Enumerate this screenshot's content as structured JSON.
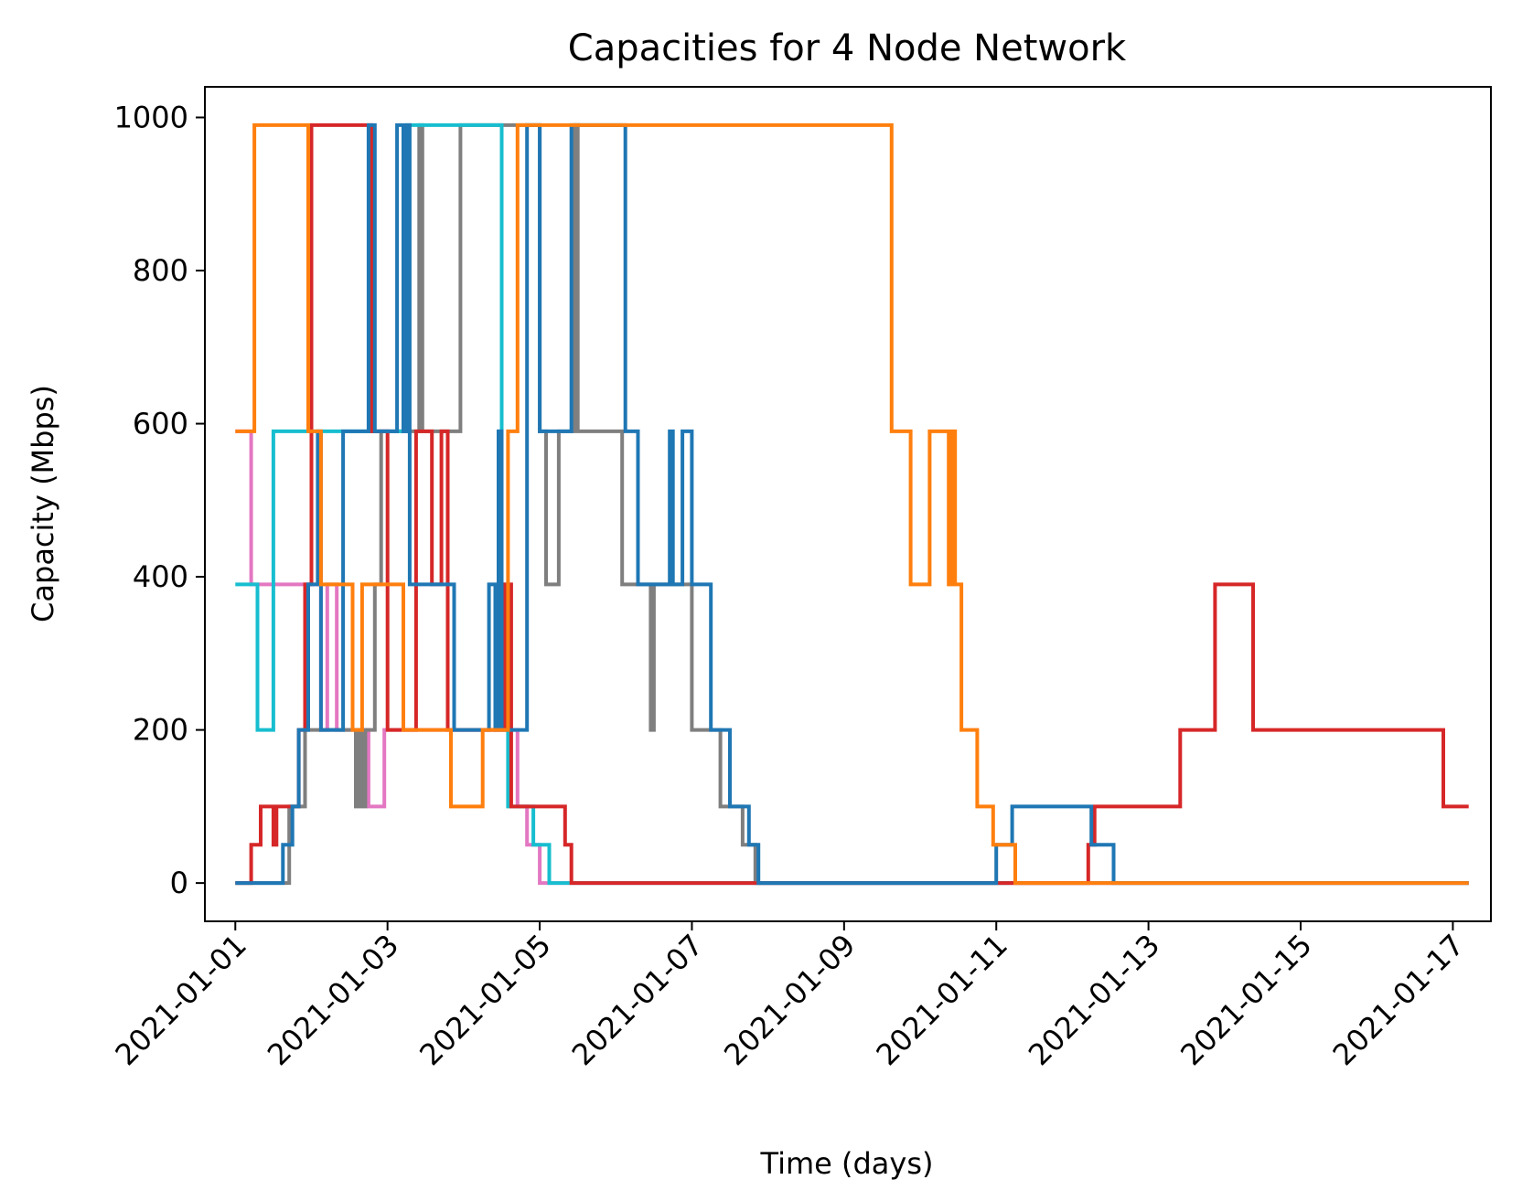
{
  "chart_data": {
    "type": "line",
    "step": true,
    "title": "Capacities for 4 Node Network",
    "xlabel": "Time (days)",
    "ylabel": "Capacity (Mbps)",
    "x_is_date": true,
    "xlim": [
      "2020-12-31T14:24",
      "2021-01-17T12:00"
    ],
    "ylim": [
      -50,
      1040
    ],
    "x_ticks": [
      "2021-01-01",
      "2021-01-03",
      "2021-01-05",
      "2021-01-07",
      "2021-01-09",
      "2021-01-11",
      "2021-01-13",
      "2021-01-15",
      "2021-01-17"
    ],
    "y_ticks": [
      0,
      200,
      400,
      600,
      800,
      1000
    ],
    "grid": false,
    "legend": false,
    "series": [
      {
        "color": "#e377c2",
        "points": [
          [
            "2021-01-01T00:00",
            590
          ],
          [
            "2021-01-01T05:00",
            590
          ],
          [
            "2021-01-01T05:00",
            390
          ],
          [
            "2021-01-01T12:00",
            390
          ],
          [
            "2021-01-01T12:00",
            390
          ],
          [
            "2021-01-02T03:00",
            390
          ],
          [
            "2021-01-02T03:00",
            200
          ],
          [
            "2021-01-02T05:00",
            200
          ],
          [
            "2021-01-02T05:00",
            390
          ],
          [
            "2021-01-02T08:00",
            390
          ],
          [
            "2021-01-02T08:00",
            200
          ],
          [
            "2021-01-02T18:00",
            200
          ],
          [
            "2021-01-02T18:00",
            100
          ],
          [
            "2021-01-02T23:00",
            100
          ],
          [
            "2021-01-02T23:00",
            200
          ],
          [
            "2021-01-04T17:00",
            200
          ],
          [
            "2021-01-04T17:00",
            100
          ],
          [
            "2021-01-04T20:00",
            100
          ],
          [
            "2021-01-04T20:00",
            50
          ],
          [
            "2021-01-05T00:00",
            50
          ],
          [
            "2021-01-05T00:00",
            0
          ],
          [
            "2021-01-17T05:00",
            0
          ]
        ]
      },
      {
        "color": "#7f7f7f",
        "points": [
          [
            "2021-01-01T00:00",
            0
          ],
          [
            "2021-01-01T17:00",
            0
          ],
          [
            "2021-01-01T17:00",
            100
          ],
          [
            "2021-01-01T22:00",
            100
          ],
          [
            "2021-01-01T22:00",
            200
          ],
          [
            "2021-01-02T14:00",
            200
          ],
          [
            "2021-01-02T14:00",
            100
          ],
          [
            "2021-01-02T15:00",
            100
          ],
          [
            "2021-01-02T15:00",
            200
          ],
          [
            "2021-01-02T16:00",
            200
          ],
          [
            "2021-01-02T16:00",
            100
          ],
          [
            "2021-01-02T17:00",
            100
          ],
          [
            "2021-01-02T17:00",
            200
          ],
          [
            "2021-01-02T20:00",
            200
          ],
          [
            "2021-01-02T20:00",
            390
          ],
          [
            "2021-01-02T22:00",
            390
          ],
          [
            "2021-01-02T22:00",
            590
          ],
          [
            "2021-01-03T10:00",
            590
          ],
          [
            "2021-01-03T10:00",
            990
          ],
          [
            "2021-01-03T11:00",
            990
          ],
          [
            "2021-01-03T11:00",
            590
          ],
          [
            "2021-01-03T23:00",
            590
          ],
          [
            "2021-01-03T23:00",
            990
          ],
          [
            "2021-01-05T00:00",
            990
          ],
          [
            "2021-01-05T00:00",
            590
          ],
          [
            "2021-01-05T02:00",
            590
          ],
          [
            "2021-01-05T02:00",
            390
          ],
          [
            "2021-01-05T06:00",
            390
          ],
          [
            "2021-01-05T06:00",
            590
          ],
          [
            "2021-01-05T11:00",
            590
          ],
          [
            "2021-01-05T11:00",
            990
          ],
          [
            "2021-01-05T12:00",
            990
          ],
          [
            "2021-01-05T12:00",
            590
          ],
          [
            "2021-01-06T02:00",
            590
          ],
          [
            "2021-01-06T02:00",
            390
          ],
          [
            "2021-01-06T11:00",
            390
          ],
          [
            "2021-01-06T11:00",
            200
          ],
          [
            "2021-01-06T12:00",
            200
          ],
          [
            "2021-01-06T12:00",
            390
          ],
          [
            "2021-01-07T00:00",
            390
          ],
          [
            "2021-01-07T00:00",
            200
          ],
          [
            "2021-01-07T09:00",
            200
          ],
          [
            "2021-01-07T09:00",
            100
          ],
          [
            "2021-01-07T16:00",
            100
          ],
          [
            "2021-01-07T16:00",
            50
          ],
          [
            "2021-01-07T20:00",
            50
          ],
          [
            "2021-01-07T20:00",
            0
          ],
          [
            "2021-01-17T05:00",
            0
          ]
        ]
      },
      {
        "color": "#17becf",
        "points": [
          [
            "2021-01-01T00:00",
            390
          ],
          [
            "2021-01-01T07:00",
            390
          ],
          [
            "2021-01-01T07:00",
            200
          ],
          [
            "2021-01-01T12:00",
            200
          ],
          [
            "2021-01-01T12:00",
            590
          ],
          [
            "2021-01-03T00:00",
            590
          ],
          [
            "2021-01-03T00:00",
            590
          ],
          [
            "2021-01-03T06:00",
            590
          ],
          [
            "2021-01-03T06:00",
            990
          ],
          [
            "2021-01-04T10:00",
            990
          ],
          [
            "2021-01-04T10:00",
            990
          ],
          [
            "2021-01-04T12:00",
            990
          ],
          [
            "2021-01-04T12:00",
            390
          ],
          [
            "2021-01-04T14:00",
            390
          ],
          [
            "2021-01-04T14:00",
            100
          ],
          [
            "2021-01-04T22:00",
            100
          ],
          [
            "2021-01-04T22:00",
            50
          ],
          [
            "2021-01-05T03:00",
            50
          ],
          [
            "2021-01-05T03:00",
            0
          ],
          [
            "2021-01-07T20:00",
            0
          ],
          [
            "2021-01-11T04:00",
            0
          ]
        ]
      },
      {
        "color": "#d62728",
        "points": [
          [
            "2021-01-01T00:00",
            0
          ],
          [
            "2021-01-01T05:00",
            0
          ],
          [
            "2021-01-01T05:00",
            50
          ],
          [
            "2021-01-01T08:00",
            50
          ],
          [
            "2021-01-01T08:00",
            100
          ],
          [
            "2021-01-01T12:00",
            100
          ],
          [
            "2021-01-01T12:00",
            50
          ],
          [
            "2021-01-01T13:00",
            50
          ],
          [
            "2021-01-01T13:00",
            100
          ],
          [
            "2021-01-01T20:00",
            100
          ],
          [
            "2021-01-01T20:00",
            200
          ],
          [
            "2021-01-01T22:00",
            200
          ],
          [
            "2021-01-01T22:00",
            390
          ],
          [
            "2021-01-02T00:00",
            390
          ],
          [
            "2021-01-02T00:00",
            990
          ],
          [
            "2021-01-02T19:00",
            990
          ],
          [
            "2021-01-02T19:00",
            590
          ],
          [
            "2021-01-03T00:00",
            590
          ],
          [
            "2021-01-03T00:00",
            200
          ],
          [
            "2021-01-03T09:00",
            200
          ],
          [
            "2021-01-03T09:00",
            590
          ],
          [
            "2021-01-03T14:00",
            590
          ],
          [
            "2021-01-03T14:00",
            390
          ],
          [
            "2021-01-03T17:00",
            390
          ],
          [
            "2021-01-03T17:00",
            590
          ],
          [
            "2021-01-03T19:00",
            590
          ],
          [
            "2021-01-03T19:00",
            200
          ],
          [
            "2021-01-04T13:00",
            200
          ],
          [
            "2021-01-04T13:00",
            390
          ],
          [
            "2021-01-04T15:00",
            390
          ],
          [
            "2021-01-04T15:00",
            100
          ],
          [
            "2021-01-05T08:00",
            100
          ],
          [
            "2021-01-05T08:00",
            50
          ],
          [
            "2021-01-05T10:00",
            50
          ],
          [
            "2021-01-05T10:00",
            0
          ],
          [
            "2021-01-12T00:00",
            0
          ],
          [
            "2021-01-12T00:00",
            0
          ],
          [
            "2021-01-12T05:00",
            0
          ],
          [
            "2021-01-12T05:00",
            50
          ],
          [
            "2021-01-12T07:00",
            50
          ],
          [
            "2021-01-12T07:00",
            100
          ],
          [
            "2021-01-13T10:00",
            100
          ],
          [
            "2021-01-13T10:00",
            200
          ],
          [
            "2021-01-13T21:00",
            200
          ],
          [
            "2021-01-13T21:00",
            390
          ],
          [
            "2021-01-14T09:00",
            390
          ],
          [
            "2021-01-14T09:00",
            200
          ],
          [
            "2021-01-16T21:00",
            200
          ],
          [
            "2021-01-16T21:00",
            100
          ],
          [
            "2021-01-17T05:00",
            100
          ]
        ]
      },
      {
        "color": "#1f77b4",
        "points": [
          [
            "2021-01-01T00:00",
            0
          ],
          [
            "2021-01-01T15:00",
            0
          ],
          [
            "2021-01-01T15:00",
            50
          ],
          [
            "2021-01-01T18:00",
            50
          ],
          [
            "2021-01-01T18:00",
            100
          ],
          [
            "2021-01-01T20:00",
            100
          ],
          [
            "2021-01-01T20:00",
            200
          ],
          [
            "2021-01-01T23:00",
            200
          ],
          [
            "2021-01-01T23:00",
            390
          ],
          [
            "2021-01-02T02:00",
            390
          ],
          [
            "2021-01-02T02:00",
            590
          ],
          [
            "2021-01-02T03:00",
            590
          ],
          [
            "2021-01-02T03:00",
            200
          ],
          [
            "2021-01-02T10:00",
            200
          ],
          [
            "2021-01-02T10:00",
            590
          ],
          [
            "2021-01-02T18:00",
            590
          ],
          [
            "2021-01-02T18:00",
            990
          ],
          [
            "2021-01-02T20:00",
            990
          ],
          [
            "2021-01-02T20:00",
            590
          ],
          [
            "2021-01-03T03:00",
            590
          ],
          [
            "2021-01-03T03:00",
            990
          ],
          [
            "2021-01-03T05:00",
            990
          ],
          [
            "2021-01-03T05:00",
            590
          ],
          [
            "2021-01-03T06:00",
            590
          ],
          [
            "2021-01-03T06:00",
            990
          ],
          [
            "2021-01-03T07:00",
            990
          ],
          [
            "2021-01-03T07:00",
            390
          ],
          [
            "2021-01-03T21:00",
            390
          ],
          [
            "2021-01-03T21:00",
            200
          ],
          [
            "2021-01-04T08:00",
            200
          ],
          [
            "2021-01-04T08:00",
            390
          ],
          [
            "2021-01-04T10:00",
            390
          ],
          [
            "2021-01-04T10:00",
            200
          ],
          [
            "2021-01-04T11:00",
            200
          ],
          [
            "2021-01-04T11:00",
            590
          ],
          [
            "2021-01-04T12:00",
            590
          ],
          [
            "2021-01-04T12:00",
            200
          ],
          [
            "2021-01-04T20:00",
            200
          ],
          [
            "2021-01-04T20:00",
            990
          ],
          [
            "2021-01-05T00:00",
            990
          ],
          [
            "2021-01-05T00:00",
            590
          ],
          [
            "2021-01-05T10:00",
            590
          ],
          [
            "2021-01-05T10:00",
            990
          ],
          [
            "2021-01-06T03:00",
            990
          ],
          [
            "2021-01-06T03:00",
            590
          ],
          [
            "2021-01-06T07:00",
            590
          ],
          [
            "2021-01-06T07:00",
            390
          ],
          [
            "2021-01-06T17:00",
            390
          ],
          [
            "2021-01-06T17:00",
            590
          ],
          [
            "2021-01-06T18:00",
            590
          ],
          [
            "2021-01-06T18:00",
            390
          ],
          [
            "2021-01-06T21:00",
            390
          ],
          [
            "2021-01-06T21:00",
            590
          ],
          [
            "2021-01-07T00:00",
            590
          ],
          [
            "2021-01-07T00:00",
            390
          ],
          [
            "2021-01-07T06:00",
            390
          ],
          [
            "2021-01-07T06:00",
            200
          ],
          [
            "2021-01-07T12:00",
            200
          ],
          [
            "2021-01-07T12:00",
            100
          ],
          [
            "2021-01-07T18:00",
            100
          ],
          [
            "2021-01-07T18:00",
            50
          ],
          [
            "2021-01-07T21:00",
            50
          ],
          [
            "2021-01-07T21:00",
            0
          ],
          [
            "2021-01-11T00:00",
            0
          ],
          [
            "2021-01-11T00:00",
            50
          ],
          [
            "2021-01-11T05:00",
            50
          ],
          [
            "2021-01-11T05:00",
            100
          ],
          [
            "2021-01-12T06:00",
            100
          ],
          [
            "2021-01-12T06:00",
            50
          ],
          [
            "2021-01-12T13:00",
            50
          ],
          [
            "2021-01-12T13:00",
            0
          ],
          [
            "2021-01-17T05:00",
            0
          ]
        ]
      },
      {
        "color": "#ff7f0e",
        "points": [
          [
            "2021-01-01T00:00",
            590
          ],
          [
            "2021-01-01T06:00",
            590
          ],
          [
            "2021-01-01T06:00",
            990
          ],
          [
            "2021-01-01T23:00",
            990
          ],
          [
            "2021-01-01T23:00",
            590
          ],
          [
            "2021-01-02T03:00",
            590
          ],
          [
            "2021-01-02T03:00",
            390
          ],
          [
            "2021-01-02T13:00",
            390
          ],
          [
            "2021-01-02T13:00",
            200
          ],
          [
            "2021-01-02T16:00",
            200
          ],
          [
            "2021-01-02T16:00",
            390
          ],
          [
            "2021-01-03T05:00",
            390
          ],
          [
            "2021-01-03T05:00",
            200
          ],
          [
            "2021-01-03T20:00",
            200
          ],
          [
            "2021-01-03T20:00",
            100
          ],
          [
            "2021-01-04T06:00",
            100
          ],
          [
            "2021-01-04T06:00",
            200
          ],
          [
            "2021-01-04T14:00",
            200
          ],
          [
            "2021-01-04T14:00",
            590
          ],
          [
            "2021-01-04T17:00",
            590
          ],
          [
            "2021-01-04T17:00",
            990
          ],
          [
            "2021-01-09T15:00",
            990
          ],
          [
            "2021-01-09T15:00",
            590
          ],
          [
            "2021-01-09T21:00",
            590
          ],
          [
            "2021-01-09T21:00",
            390
          ],
          [
            "2021-01-10T03:00",
            390
          ],
          [
            "2021-01-10T03:00",
            590
          ],
          [
            "2021-01-10T09:00",
            590
          ],
          [
            "2021-01-10T09:00",
            390
          ],
          [
            "2021-01-10T10:00",
            390
          ],
          [
            "2021-01-10T10:00",
            590
          ],
          [
            "2021-01-10T11:00",
            590
          ],
          [
            "2021-01-10T11:00",
            390
          ],
          [
            "2021-01-10T13:00",
            390
          ],
          [
            "2021-01-10T13:00",
            200
          ],
          [
            "2021-01-10T18:00",
            200
          ],
          [
            "2021-01-10T18:00",
            100
          ],
          [
            "2021-01-10T23:00",
            100
          ],
          [
            "2021-01-10T23:00",
            50
          ],
          [
            "2021-01-11T06:00",
            50
          ],
          [
            "2021-01-11T06:00",
            0
          ],
          [
            "2021-01-17T05:00",
            0
          ]
        ]
      }
    ]
  }
}
